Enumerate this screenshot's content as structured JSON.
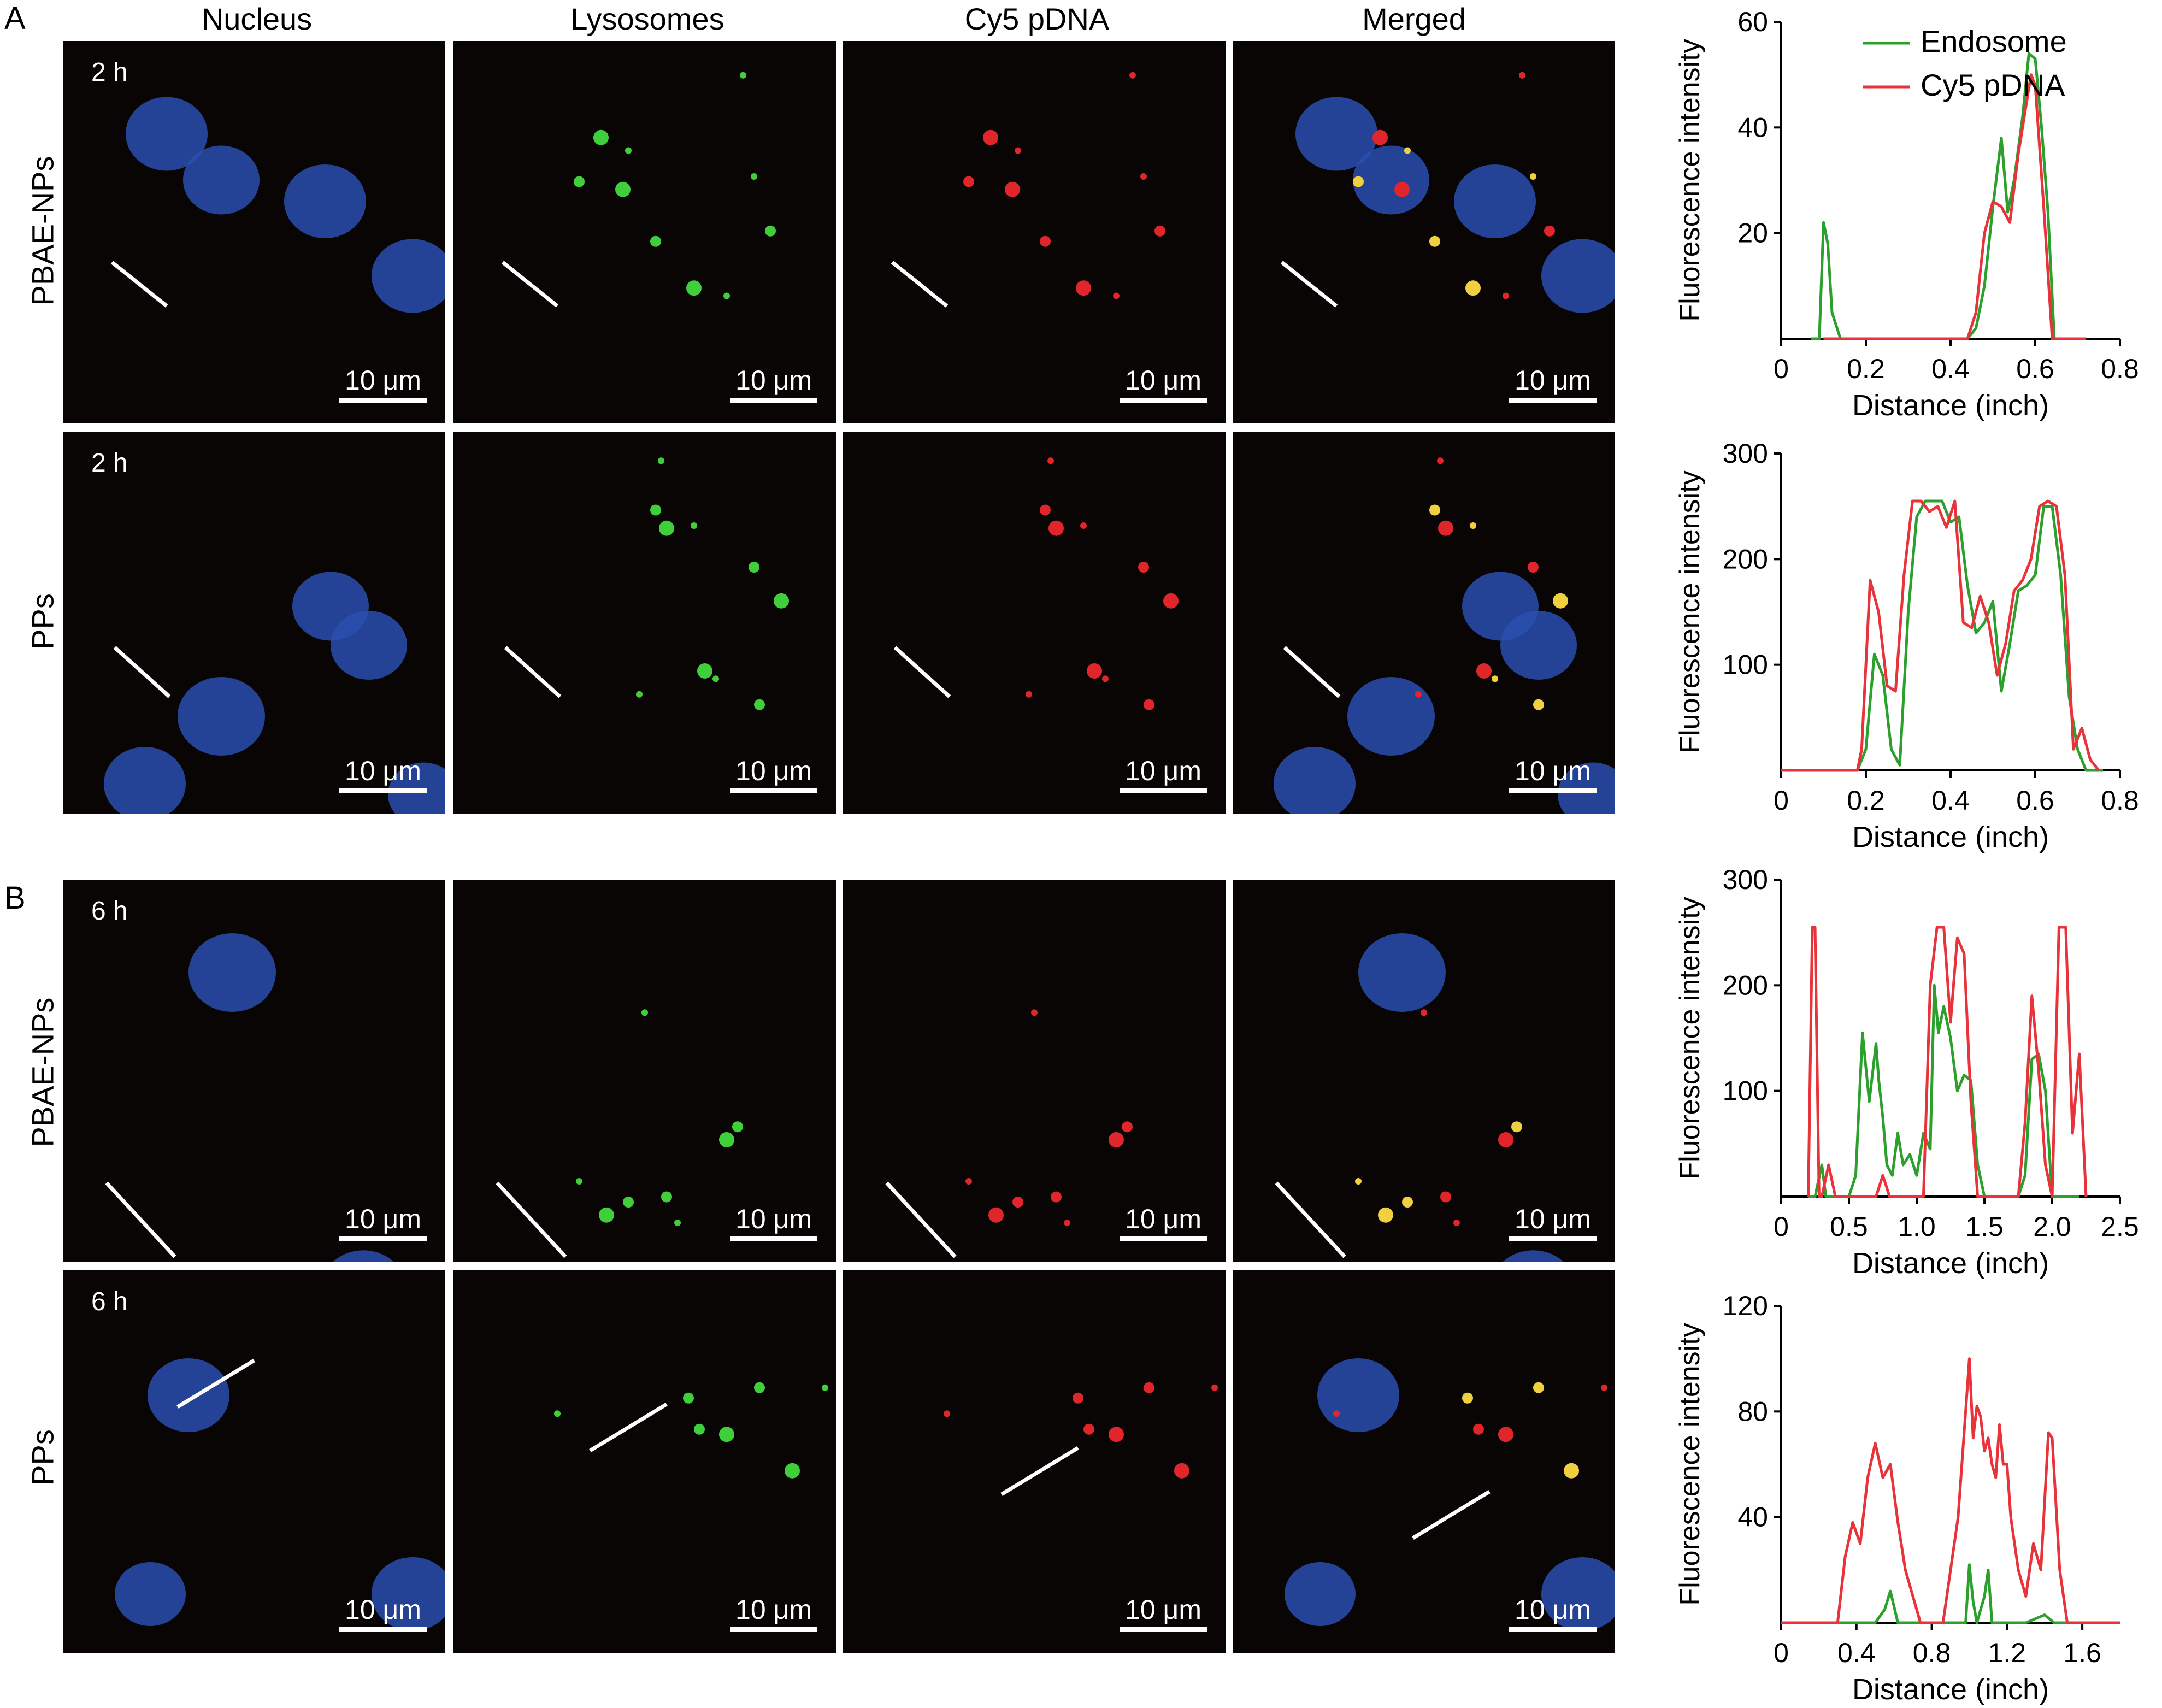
{
  "panel_letters": [
    "A",
    "B"
  ],
  "columns": [
    "Nucleus",
    "Lysosomes",
    "Cy5 pDNA",
    "Merged"
  ],
  "rows": [
    {
      "label": "PBAE-NPs",
      "time": "2 h"
    },
    {
      "label": "PPs",
      "time": "2 h"
    },
    {
      "label": "PBAE-NPs",
      "time": "6 h"
    },
    {
      "label": "PPs",
      "time": "6 h"
    }
  ],
  "scale_bar": "10 μm",
  "colors": {
    "nucleus": "#2a4fb0",
    "lysosome": "#3fcf3a",
    "cy5": "#e0262a",
    "merged_spot": "#f0d040",
    "endosome_line": "#2ca02c",
    "cy5_line": "#e8333a"
  },
  "chart_data": [
    {
      "type": "line",
      "xlabel": "Distance (inch)",
      "ylabel": "Fluorescence intensity",
      "xlim": [
        0,
        0.8
      ],
      "ylim": [
        0,
        60
      ],
      "xticks": [
        "0",
        "0.2",
        "0.4",
        "0.6",
        "0.8"
      ],
      "yticks": [
        "20",
        "40",
        "60"
      ],
      "legend": [
        "Endosome",
        "Cy5 pDNA"
      ],
      "series": [
        {
          "name": "Endosome",
          "x": [
            0.07,
            0.09,
            0.1,
            0.11,
            0.12,
            0.14,
            0.2,
            0.3,
            0.4,
            0.44,
            0.46,
            0.48,
            0.5,
            0.52,
            0.535,
            0.55,
            0.57,
            0.585,
            0.6,
            0.615,
            0.63,
            0.645
          ],
          "y": [
            0,
            0,
            22,
            18,
            5,
            0,
            0,
            0,
            0,
            0,
            2,
            10,
            25,
            38,
            24,
            30,
            42,
            54,
            53,
            40,
            24,
            0
          ]
        },
        {
          "name": "Cy5 pDNA",
          "x": [
            0.1,
            0.2,
            0.3,
            0.4,
            0.44,
            0.46,
            0.48,
            0.5,
            0.52,
            0.54,
            0.56,
            0.58,
            0.59,
            0.6,
            0.62,
            0.64,
            0.66,
            0.7,
            0.72
          ],
          "y": [
            0,
            0,
            0,
            0,
            0,
            5,
            20,
            26,
            25,
            22,
            35,
            45,
            50,
            48,
            25,
            0,
            0,
            0,
            0
          ]
        }
      ]
    },
    {
      "type": "line",
      "xlabel": "Distance (inch)",
      "ylabel": "Fluorescence intensity",
      "xlim": [
        0,
        0.8
      ],
      "ylim": [
        0,
        300
      ],
      "xticks": [
        "0",
        "0.2",
        "0.4",
        "0.6",
        "0.8"
      ],
      "yticks": [
        "100",
        "200",
        "300"
      ],
      "series": [
        {
          "name": "Endosome",
          "x": [
            0,
            0.18,
            0.2,
            0.22,
            0.24,
            0.26,
            0.28,
            0.3,
            0.32,
            0.34,
            0.36,
            0.38,
            0.4,
            0.42,
            0.44,
            0.46,
            0.48,
            0.5,
            0.52,
            0.54,
            0.56,
            0.58,
            0.6,
            0.62,
            0.64,
            0.66,
            0.68,
            0.7,
            0.72,
            0.76
          ],
          "y": [
            0,
            0,
            20,
            110,
            90,
            20,
            5,
            150,
            240,
            255,
            255,
            255,
            235,
            240,
            175,
            130,
            140,
            160,
            75,
            120,
            170,
            175,
            185,
            250,
            250,
            185,
            70,
            20,
            0,
            0
          ]
        },
        {
          "name": "Cy5 pDNA",
          "x": [
            0,
            0.18,
            0.19,
            0.21,
            0.23,
            0.25,
            0.27,
            0.29,
            0.31,
            0.33,
            0.35,
            0.37,
            0.39,
            0.41,
            0.43,
            0.45,
            0.47,
            0.49,
            0.51,
            0.53,
            0.55,
            0.57,
            0.59,
            0.61,
            0.63,
            0.65,
            0.67,
            0.69,
            0.71,
            0.73,
            0.75
          ],
          "y": [
            0,
            0,
            20,
            180,
            150,
            80,
            75,
            185,
            255,
            255,
            245,
            250,
            230,
            255,
            140,
            135,
            165,
            140,
            90,
            120,
            170,
            180,
            200,
            250,
            255,
            250,
            185,
            20,
            40,
            10,
            0
          ]
        }
      ]
    },
    {
      "type": "line",
      "xlabel": "Distance (inch)",
      "ylabel": "Fluorescence intensity",
      "xlim": [
        0,
        2.5
      ],
      "ylim": [
        0,
        300
      ],
      "xticks": [
        "0",
        "0.5",
        "1.0",
        "1.5",
        "2.0",
        "2.5"
      ],
      "yticks": [
        "100",
        "200",
        "300"
      ],
      "series": [
        {
          "name": "Endosome",
          "x": [
            0.2,
            0.25,
            0.3,
            0.33,
            0.4,
            0.5,
            0.55,
            0.6,
            0.65,
            0.7,
            0.72,
            0.75,
            0.78,
            0.82,
            0.86,
            0.9,
            0.95,
            1.0,
            1.05,
            1.1,
            1.13,
            1.16,
            1.2,
            1.25,
            1.3,
            1.35,
            1.4,
            1.45,
            1.5,
            1.6,
            1.7,
            1.75,
            1.8,
            1.85,
            1.9,
            1.95,
            2.0,
            2.1,
            2.2
          ],
          "y": [
            0,
            0,
            30,
            0,
            0,
            0,
            20,
            155,
            90,
            145,
            110,
            75,
            30,
            20,
            60,
            30,
            40,
            20,
            60,
            45,
            200,
            155,
            180,
            150,
            100,
            115,
            110,
            30,
            0,
            0,
            0,
            0,
            20,
            130,
            135,
            100,
            0,
            0,
            0
          ]
        },
        {
          "name": "Cy5 pDNA",
          "x": [
            0.2,
            0.23,
            0.25,
            0.28,
            0.3,
            0.35,
            0.4,
            0.5,
            0.6,
            0.7,
            0.75,
            0.8,
            0.85,
            0.9,
            1.0,
            1.05,
            1.1,
            1.15,
            1.2,
            1.25,
            1.3,
            1.35,
            1.4,
            1.45,
            1.5,
            1.6,
            1.7,
            1.75,
            1.8,
            1.85,
            1.9,
            1.95,
            2.0,
            2.05,
            2.07,
            2.1,
            2.15,
            2.2,
            2.25
          ],
          "y": [
            0,
            255,
            255,
            0,
            0,
            30,
            0,
            0,
            0,
            0,
            20,
            0,
            0,
            0,
            0,
            0,
            200,
            255,
            255,
            165,
            245,
            230,
            90,
            0,
            0,
            0,
            0,
            0,
            70,
            190,
            120,
            30,
            0,
            255,
            255,
            255,
            60,
            135,
            0
          ]
        }
      ]
    },
    {
      "type": "line",
      "xlabel": "Distance (inch)",
      "ylabel": "Fluorescence intensity",
      "xlim": [
        0,
        1.8
      ],
      "ylim": [
        0,
        120
      ],
      "xticks": [
        "0",
        "0.4",
        "0.8",
        "1.2",
        "1.6"
      ],
      "yticks": [
        "40",
        "80",
        "120"
      ],
      "series": [
        {
          "name": "Endosome",
          "x": [
            0,
            0.5,
            0.55,
            0.58,
            0.62,
            0.7,
            0.95,
            0.98,
            1.0,
            1.02,
            1.04,
            1.08,
            1.1,
            1.12,
            1.15,
            1.3,
            1.4,
            1.45,
            1.5,
            1.8
          ],
          "y": [
            0,
            0,
            5,
            12,
            0,
            0,
            0,
            0,
            22,
            8,
            0,
            10,
            20,
            0,
            0,
            0,
            3,
            0,
            0,
            0
          ]
        },
        {
          "name": "Cy5 pDNA",
          "x": [
            0,
            0.3,
            0.34,
            0.38,
            0.42,
            0.46,
            0.5,
            0.54,
            0.58,
            0.62,
            0.66,
            0.7,
            0.74,
            0.78,
            0.82,
            0.86,
            0.9,
            0.94,
            0.98,
            1.0,
            1.02,
            1.04,
            1.06,
            1.08,
            1.1,
            1.12,
            1.14,
            1.16,
            1.18,
            1.2,
            1.22,
            1.26,
            1.3,
            1.34,
            1.38,
            1.42,
            1.44,
            1.48,
            1.52,
            1.8
          ],
          "y": [
            0,
            0,
            25,
            38,
            30,
            55,
            68,
            55,
            60,
            38,
            20,
            10,
            0,
            0,
            0,
            0,
            20,
            40,
            80,
            100,
            70,
            82,
            78,
            65,
            70,
            60,
            55,
            75,
            60,
            60,
            40,
            20,
            10,
            30,
            20,
            72,
            70,
            20,
            0,
            0
          ]
        }
      ]
    }
  ]
}
